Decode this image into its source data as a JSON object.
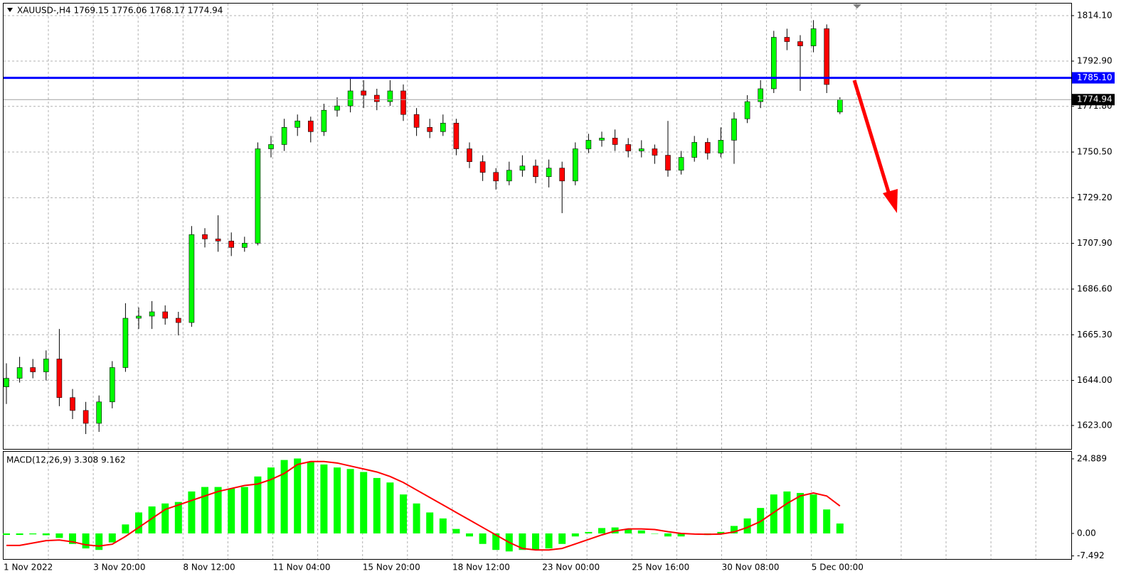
{
  "chart_data": [
    {
      "type": "candlestick",
      "title": "XAUUSD-,H4  1769.15 1776.06 1768.17 1774.94",
      "categories": [
        "1 Nov 2022",
        "3 Nov 20:00",
        "8 Nov 12:00",
        "11 Nov 04:00",
        "15 Nov 20:00",
        "18 Nov 12:00",
        "23 Nov 00:00",
        "25 Nov 16:00",
        "30 Nov 08:00",
        "5 Dec 00:00"
      ],
      "open": [
        1641,
        1645,
        1650,
        1648,
        1654,
        1636,
        1630,
        1624,
        1634,
        1650,
        1673,
        1674,
        1676,
        1673,
        1671,
        1712,
        1710,
        1709,
        1706,
        1708,
        1752,
        1754,
        1762,
        1765,
        1760,
        1770,
        1772,
        1779,
        1777,
        1774,
        1779,
        1768,
        1762,
        1760,
        1764,
        1752,
        1746,
        1741,
        1737,
        1742,
        1744,
        1739,
        1743,
        1737,
        1752,
        1756,
        1757,
        1754,
        1751,
        1752,
        1749,
        1742,
        1748,
        1755,
        1750,
        1756,
        1766,
        1774,
        1780,
        1804,
        1802,
        1800,
        1808,
        1769.15
      ],
      "high": [
        1652,
        1655,
        1654,
        1658,
        1668,
        1640,
        1634,
        1637,
        1653,
        1680,
        1678,
        1681,
        1679,
        1676,
        1716,
        1715,
        1721,
        1713,
        1711,
        1755,
        1758,
        1766,
        1768,
        1767,
        1773,
        1776,
        1785,
        1784,
        1780,
        1784,
        1782,
        1771,
        1766,
        1768,
        1766,
        1755,
        1749,
        1743,
        1746,
        1749,
        1747,
        1747,
        1746,
        1755,
        1759,
        1760,
        1761,
        1757,
        1756,
        1754,
        1765,
        1751,
        1758,
        1757,
        1762,
        1769,
        1777,
        1784,
        1807,
        1808,
        1805,
        1812,
        1810,
        1776.06
      ],
      "low": [
        1633,
        1643,
        1645,
        1644,
        1632,
        1626,
        1619,
        1620,
        1631,
        1648,
        1668,
        1668,
        1670,
        1665,
        1669,
        1706,
        1704,
        1702,
        1704,
        1707,
        1748,
        1751,
        1758,
        1755,
        1758,
        1767,
        1769,
        1771,
        1770,
        1772,
        1765,
        1758,
        1757,
        1758,
        1749,
        1743,
        1737,
        1733,
        1735,
        1739,
        1736,
        1734,
        1722,
        1735,
        1750,
        1753,
        1751,
        1748,
        1748,
        1745,
        1739,
        1740,
        1746,
        1747,
        1748,
        1745,
        1764,
        1771,
        1778,
        1798,
        1779,
        1797,
        1778,
        1768.17
      ],
      "close": [
        1645,
        1650,
        1648,
        1654,
        1636,
        1630,
        1624,
        1634,
        1650,
        1673,
        1674,
        1676,
        1673,
        1671,
        1712,
        1710,
        1709,
        1706,
        1708,
        1752,
        1754,
        1762,
        1765,
        1760,
        1770,
        1772,
        1779,
        1777,
        1774,
        1779,
        1768,
        1762,
        1760,
        1764,
        1752,
        1746,
        1741,
        1737,
        1742,
        1744,
        1739,
        1743,
        1737,
        1752,
        1756,
        1757,
        1754,
        1751,
        1752,
        1749,
        1742,
        1748,
        1755,
        1750,
        1756,
        1766,
        1774,
        1780,
        1804,
        1802,
        1800,
        1808,
        1782,
        1774.94
      ],
      "up_color": "#00ff00",
      "down_color": "#ff0000",
      "ylim": [
        1612.07,
        1818.74
      ],
      "yticks": [
        {
          "value": 1814.1,
          "label": "1814.10"
        },
        {
          "value": 1792.9,
          "label": "1792.90"
        },
        {
          "value": 1771.8,
          "label": "1771.80"
        },
        {
          "value": 1750.5,
          "label": "1750.50"
        },
        {
          "value": 1729.2,
          "label": "1729.20"
        },
        {
          "value": 1707.9,
          "label": "1707.90"
        },
        {
          "value": 1686.6,
          "label": "1686.60"
        },
        {
          "value": 1665.3,
          "label": "1665.30"
        },
        {
          "value": 1644,
          "label": "1644.00"
        },
        {
          "value": 1623,
          "label": "1623.00"
        }
      ],
      "grid": true,
      "hline": {
        "value": 1785.1,
        "label": "1785.10",
        "color": "#0000ff"
      },
      "current_price": {
        "value": 1774.94,
        "label": "1774.94"
      }
    },
    {
      "type": "macd",
      "title": "MACD(12,26,9) 3.308 9.162",
      "series": [
        {
          "color": "#00ff00",
          "values": [
            -0.5,
            -0.5,
            -0.3,
            -0.6,
            -1.5,
            -3.5,
            -5,
            -5.5,
            -3,
            3,
            7,
            9,
            10,
            10.5,
            14,
            15.5,
            15.5,
            15,
            15.5,
            19,
            22,
            24.5,
            25,
            24,
            23,
            22,
            21.5,
            20.5,
            18.5,
            17,
            13,
            10,
            7,
            5,
            1.5,
            -1,
            -3.5,
            -5.5,
            -6,
            -5.5,
            -5.5,
            -5,
            -3.5,
            -1,
            0.5,
            1.8,
            2,
            1.5,
            1,
            0,
            -1,
            -1,
            0,
            -0.5,
            0.5,
            2.5,
            5,
            8.5,
            13,
            14,
            13.5,
            13,
            8,
            3.308
          ]
        },
        {
          "color": "#ff0000",
          "values": [
            -4,
            -4,
            -3.2,
            -2.4,
            -2.2,
            -2.8,
            -3.8,
            -4.2,
            -3.6,
            -1,
            2,
            5,
            8,
            9.5,
            11,
            12.5,
            14,
            15,
            16,
            16.5,
            18,
            20,
            23,
            24,
            24,
            23.5,
            22.5,
            21.5,
            20.5,
            19,
            17,
            14.5,
            12,
            9.5,
            7,
            4.5,
            2,
            -0.5,
            -3,
            -5,
            -5.5,
            -5.5,
            -5,
            -3.5,
            -2,
            -0.5,
            0.8,
            1.5,
            1.5,
            1.3,
            0.6,
            0,
            -0.2,
            -0.3,
            -0.2,
            0.5,
            2,
            4,
            7,
            10,
            12.5,
            13.5,
            12.5,
            9.162
          ]
        }
      ],
      "ylim": [
        -8.53,
        27.25
      ],
      "yticks": [
        24.889,
        {
          "value": 0,
          "label": "0.00"
        },
        -7.492
      ],
      "grid": true
    }
  ]
}
